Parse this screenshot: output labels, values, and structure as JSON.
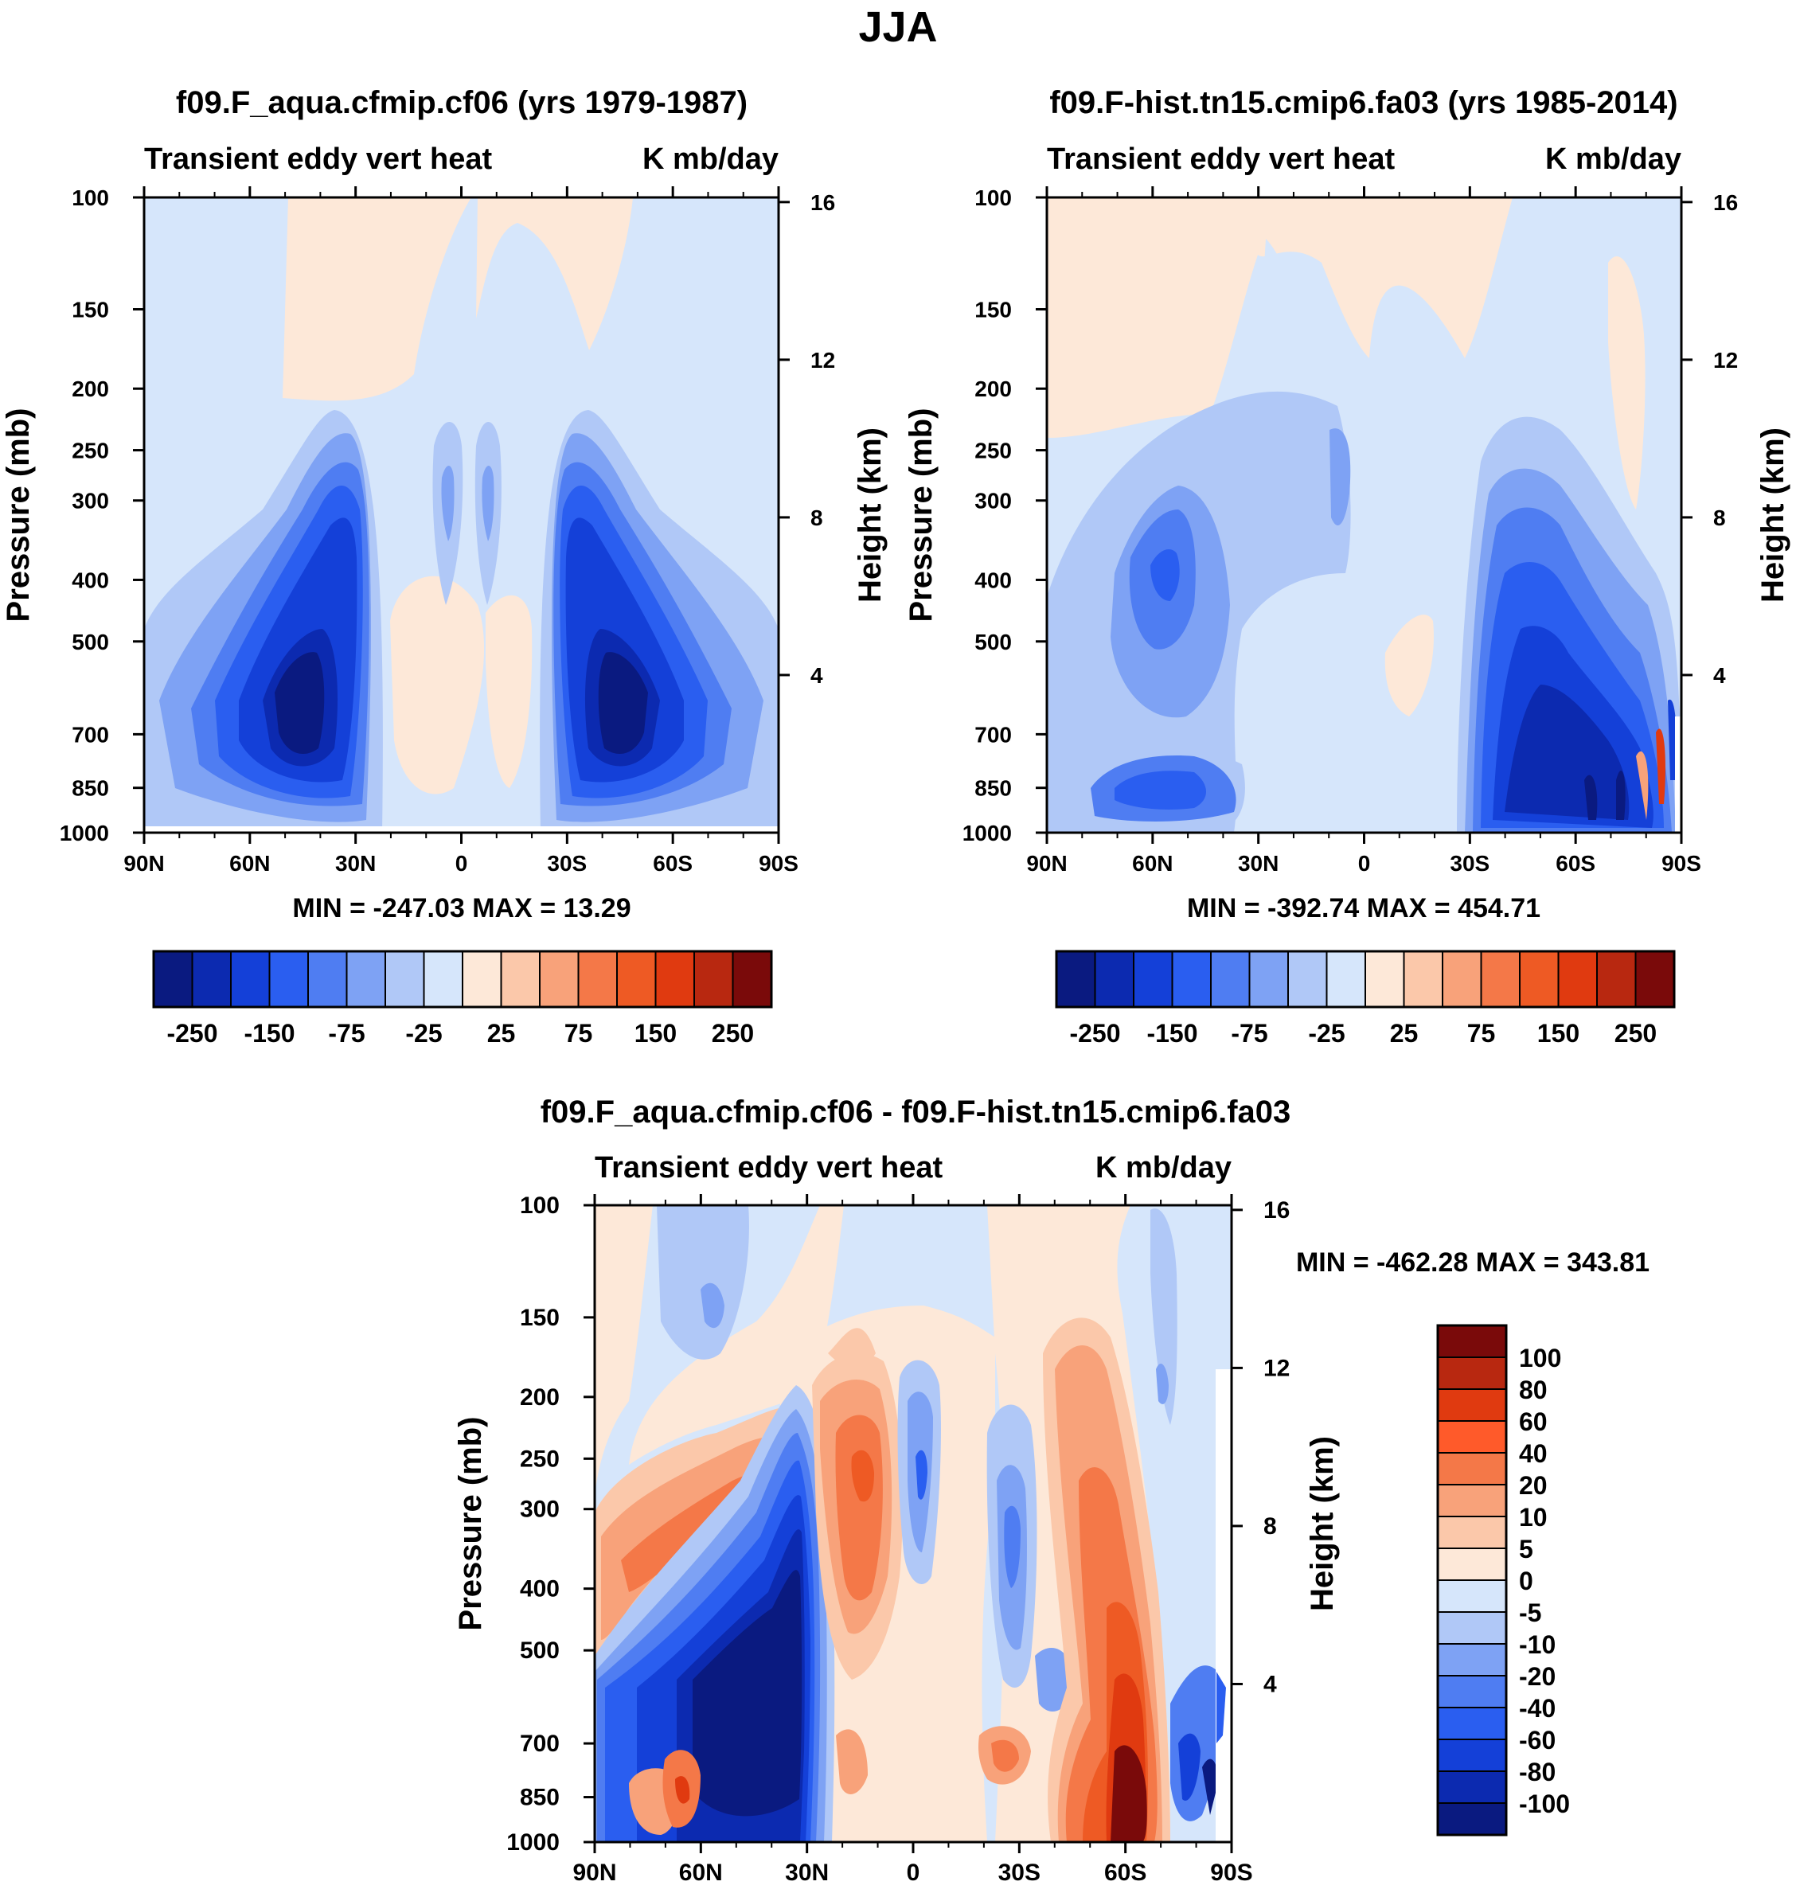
{
  "title": "JJA",
  "chart_data": [
    {
      "type": "heatmap",
      "title": "f09.F_aqua.cfmip.cf06 (yrs 1979-1987)",
      "subtitle_left": "Transient eddy vert heat",
      "subtitle_right": "K mb/day",
      "xlabel": "",
      "ylabel": "Pressure (mb)",
      "ylabel_right": "Height (km)",
      "x_ticks": [
        "90N",
        "60N",
        "30N",
        "0",
        "30S",
        "60S",
        "90S"
      ],
      "y_ticks": [
        "100",
        "150",
        "200",
        "250",
        "300",
        "400",
        "500",
        "700",
        "850",
        "1000"
      ],
      "y_ticks_right": [
        "16",
        "12",
        "8",
        "4"
      ],
      "min_max": "MIN = -247.03   MAX =  13.29",
      "levels": [
        -250,
        -150,
        -75,
        -25,
        25,
        75,
        150,
        250
      ],
      "colorbar_labels": [
        "-250",
        "-150",
        "-75",
        "-25",
        "25",
        "75",
        "150",
        "250"
      ]
    },
    {
      "type": "heatmap",
      "title": "f09.F-hist.tn15.cmip6.fa03 (yrs 1985-2014)",
      "subtitle_left": "Transient eddy vert heat",
      "subtitle_right": "K mb/day",
      "xlabel": "",
      "ylabel": "Pressure (mb)",
      "ylabel_right": "Height (km)",
      "x_ticks": [
        "90N",
        "60N",
        "30N",
        "0",
        "30S",
        "60S",
        "90S"
      ],
      "y_ticks": [
        "100",
        "150",
        "200",
        "250",
        "300",
        "400",
        "500",
        "700",
        "850",
        "1000"
      ],
      "y_ticks_right": [
        "16",
        "12",
        "8",
        "4"
      ],
      "min_max": "MIN = -392.74   MAX = 454.71",
      "levels": [
        -250,
        -150,
        -75,
        -25,
        25,
        75,
        150,
        250
      ],
      "colorbar_labels": [
        "-250",
        "-150",
        "-75",
        "-25",
        "25",
        "75",
        "150",
        "250"
      ]
    },
    {
      "type": "heatmap",
      "title": "f09.F_aqua.cfmip.cf06 - f09.F-hist.tn15.cmip6.fa03",
      "subtitle_left": "Transient eddy vert heat",
      "subtitle_right": "K mb/day",
      "xlabel": "",
      "ylabel": "Pressure (mb)",
      "ylabel_right": "Height (km)",
      "x_ticks": [
        "90N",
        "60N",
        "30N",
        "0",
        "30S",
        "60S",
        "90S"
      ],
      "y_ticks": [
        "100",
        "150",
        "200",
        "250",
        "300",
        "400",
        "500",
        "700",
        "850",
        "1000"
      ],
      "y_ticks_right": [
        "16",
        "12",
        "8",
        "4"
      ],
      "min_max": "MIN = -462.28  MAX = 343.81",
      "colorbar_labels": [
        "100",
        "80",
        "60",
        "40",
        "20",
        "10",
        "5",
        "0",
        "-5",
        "-10",
        "-20",
        "-40",
        "-60",
        "-80",
        "-100"
      ]
    }
  ],
  "colors": {
    "abs_scale": [
      "#0a1a80",
      "#0c2ab0",
      "#1440d8",
      "#2a5ef0",
      "#4f7df2",
      "#7ea2f4",
      "#b0c8f7",
      "#d6e6fb",
      "#fde8d8",
      "#fbc8aa",
      "#f8a27a",
      "#f47848",
      "#ee5a24",
      "#e03a10",
      "#b82810",
      "#7a0a0a"
    ],
    "diff_scale": [
      "#7a0a0a",
      "#b82810",
      "#e03a10",
      "#ff5a2a",
      "#f47848",
      "#f8a27a",
      "#fbc8aa",
      "#fde8d8",
      "#d6e6fb",
      "#b0c8f7",
      "#7ea2f4",
      "#4f7df2",
      "#2a5ef0",
      "#1440d8",
      "#0c2ab0",
      "#0a1a80"
    ]
  }
}
